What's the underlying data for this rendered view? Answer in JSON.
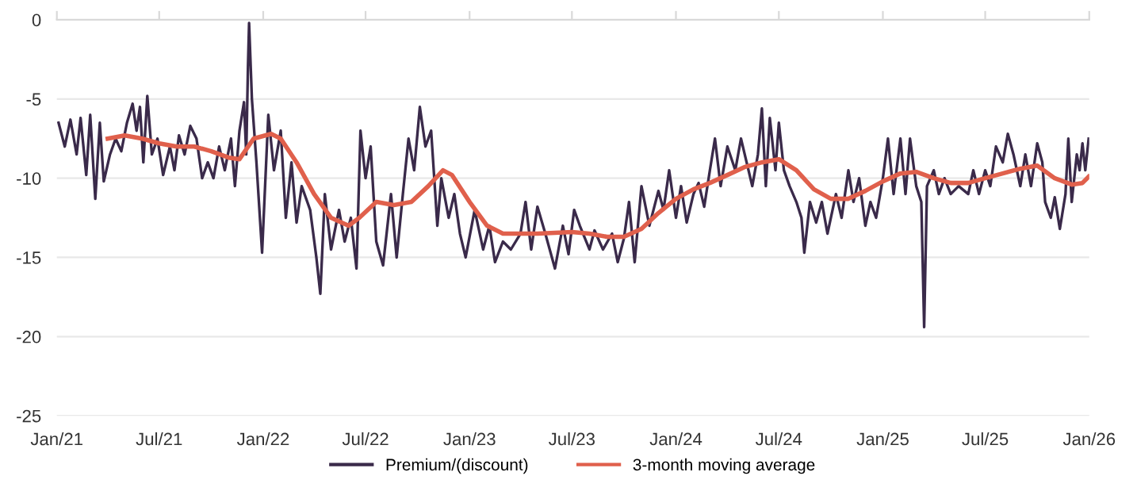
{
  "chart_data": {
    "type": "line",
    "xlim": [
      "2021-01-01",
      "2026-01-01"
    ],
    "xticks": [
      {
        "value": "2021-01-01",
        "label": "Jan/21"
      },
      {
        "value": "2021-07-01",
        "label": "Jul/21"
      },
      {
        "value": "2022-01-01",
        "label": "Jan/22"
      },
      {
        "value": "2022-07-01",
        "label": "Jul/22"
      },
      {
        "value": "2023-01-01",
        "label": "Jan/23"
      },
      {
        "value": "2023-07-01",
        "label": "Jul/23"
      },
      {
        "value": "2024-01-01",
        "label": "Jan/24"
      },
      {
        "value": "2024-07-01",
        "label": "Jul/24"
      },
      {
        "value": "2025-01-01",
        "label": "Jan/25"
      },
      {
        "value": "2025-07-01",
        "label": "Jul/25"
      },
      {
        "value": "2026-01-01",
        "label": "Jan/26"
      }
    ],
    "ylim": [
      -25,
      0
    ],
    "yticks": [
      -25,
      -20,
      -15,
      -10,
      -5,
      0
    ],
    "grid": "y",
    "legend": "bottom",
    "line_style": "solid",
    "marker": "none",
    "series": [
      {
        "name": "Premium/(discount)",
        "color": "#3a2a4a",
        "x": [
          "2021-01-04",
          "2021-01-15",
          "2021-01-25",
          "2021-02-05",
          "2021-02-12",
          "2021-02-22",
          "2021-03-01",
          "2021-03-10",
          "2021-03-18",
          "2021-03-25",
          "2021-04-05",
          "2021-04-15",
          "2021-04-25",
          "2021-05-05",
          "2021-05-15",
          "2021-05-22",
          "2021-05-28",
          "2021-06-03",
          "2021-06-10",
          "2021-06-18",
          "2021-06-28",
          "2021-07-08",
          "2021-07-20",
          "2021-07-28",
          "2021-08-05",
          "2021-08-15",
          "2021-08-25",
          "2021-09-05",
          "2021-09-15",
          "2021-09-25",
          "2021-10-05",
          "2021-10-15",
          "2021-10-25",
          "2021-11-05",
          "2021-11-12",
          "2021-11-20",
          "2021-11-28",
          "2021-12-02",
          "2021-12-05",
          "2021-12-07",
          "2021-12-12",
          "2021-12-20",
          "2021-12-30",
          "2022-01-10",
          "2022-01-20",
          "2022-02-01",
          "2022-02-10",
          "2022-02-20",
          "2022-03-01",
          "2022-03-10",
          "2022-03-25",
          "2022-04-05",
          "2022-04-12",
          "2022-04-20",
          "2022-05-01",
          "2022-05-15",
          "2022-05-25",
          "2022-06-05",
          "2022-06-15",
          "2022-06-22",
          "2022-07-01",
          "2022-07-10",
          "2022-07-20",
          "2022-08-01",
          "2022-08-15",
          "2022-08-25",
          "2022-09-05",
          "2022-09-15",
          "2022-09-25",
          "2022-10-05",
          "2022-10-15",
          "2022-10-25",
          "2022-11-05",
          "2022-11-12",
          "2022-11-25",
          "2022-12-05",
          "2022-12-15",
          "2022-12-25",
          "2023-01-10",
          "2023-01-25",
          "2023-02-05",
          "2023-02-15",
          "2023-03-01",
          "2023-03-15",
          "2023-04-01",
          "2023-04-10",
          "2023-04-20",
          "2023-05-01",
          "2023-05-15",
          "2023-06-01",
          "2023-06-15",
          "2023-06-25",
          "2023-07-05",
          "2023-07-15",
          "2023-08-01",
          "2023-08-10",
          "2023-08-25",
          "2023-09-10",
          "2023-09-20",
          "2023-10-01",
          "2023-10-10",
          "2023-10-20",
          "2023-11-01",
          "2023-11-15",
          "2023-12-01",
          "2023-12-10",
          "2023-12-20",
          "2024-01-01",
          "2024-01-10",
          "2024-01-20",
          "2024-02-01",
          "2024-02-10",
          "2024-02-20",
          "2024-03-01",
          "2024-03-10",
          "2024-03-20",
          "2024-04-01",
          "2024-04-15",
          "2024-04-25",
          "2024-05-05",
          "2024-05-15",
          "2024-05-25",
          "2024-06-01",
          "2024-06-08",
          "2024-06-15",
          "2024-06-25",
          "2024-07-01",
          "2024-07-10",
          "2024-07-20",
          "2024-08-01",
          "2024-08-10",
          "2024-08-15",
          "2024-08-25",
          "2024-09-05",
          "2024-09-15",
          "2024-09-25",
          "2024-10-10",
          "2024-10-20",
          "2024-11-01",
          "2024-11-10",
          "2024-11-20",
          "2024-12-01",
          "2024-12-10",
          "2024-12-20",
          "2025-01-01",
          "2025-01-10",
          "2025-01-20",
          "2025-02-01",
          "2025-02-10",
          "2025-02-18",
          "2025-03-01",
          "2025-03-10",
          "2025-03-15",
          "2025-03-20",
          "2025-04-01",
          "2025-04-10",
          "2025-04-20",
          "2025-05-01",
          "2025-05-15",
          "2025-06-01",
          "2025-06-10",
          "2025-06-20",
          "2025-07-01",
          "2025-07-10",
          "2025-07-20",
          "2025-08-01",
          "2025-08-10",
          "2025-08-20",
          "2025-09-01",
          "2025-09-10",
          "2025-09-20",
          "2025-10-01",
          "2025-10-10",
          "2025-10-15",
          "2025-10-25",
          "2025-11-01",
          "2025-11-10",
          "2025-11-20",
          "2025-11-25",
          "2025-12-01",
          "2025-12-10",
          "2025-12-15",
          "2025-12-20",
          "2025-12-25",
          "2025-12-31"
        ],
        "values": [
          -6.5,
          -8,
          -6.3,
          -8.5,
          -6.2,
          -9.8,
          -6,
          -11.3,
          -6.5,
          -10.2,
          -8.5,
          -7.5,
          -8.3,
          -6.5,
          -5.3,
          -7,
          -5.5,
          -9,
          -4.8,
          -8.5,
          -7.5,
          -9.8,
          -8,
          -9.5,
          -7.3,
          -8.5,
          -6.7,
          -7.5,
          -10,
          -9,
          -10,
          -8,
          -9.5,
          -7.5,
          -10.5,
          -7,
          -5.2,
          -8.5,
          -3,
          -0.2,
          -5,
          -9,
          -14.7,
          -6,
          -9.5,
          -7,
          -12.5,
          -9,
          -12.8,
          -10.5,
          -12,
          -15,
          -17.3,
          -11,
          -14.5,
          -12,
          -14,
          -12.5,
          -15.7,
          -7,
          -10,
          -8,
          -14,
          -15.5,
          -11,
          -15,
          -11,
          -7.5,
          -9.5,
          -5.5,
          -8,
          -7,
          -13,
          -10,
          -12.5,
          -11,
          -13.5,
          -15,
          -12,
          -14.5,
          -13,
          -15.3,
          -14,
          -14.5,
          -13.5,
          -11.5,
          -14.5,
          -11.8,
          -13.5,
          -15.7,
          -13,
          -14.8,
          -12,
          -13,
          -14.5,
          -13.3,
          -14.5,
          -13.5,
          -15.3,
          -13.8,
          -11.5,
          -15.3,
          -10.5,
          -13,
          -10.8,
          -12,
          -9.5,
          -12.5,
          -10.5,
          -12.8,
          -11,
          -10.3,
          -11.8,
          -9.5,
          -7.5,
          -10.5,
          -8,
          -9.5,
          -7.5,
          -9,
          -10.5,
          -8.5,
          -5.6,
          -10.5,
          -6.2,
          -9.5,
          -6.5,
          -9.5,
          -10.5,
          -11.5,
          -12.5,
          -14.7,
          -11.5,
          -12.8,
          -11.5,
          -13.5,
          -11,
          -12.5,
          -9.5,
          -11.5,
          -10,
          -13,
          -11.5,
          -12.5,
          -10,
          -7.5,
          -11,
          -7.5,
          -11,
          -7.5,
          -10.5,
          -11.5,
          -19.4,
          -10.5,
          -9.5,
          -11,
          -10,
          -11,
          -10.5,
          -11,
          -9.5,
          -11,
          -9.5,
          -10.5,
          -8,
          -9,
          -7.2,
          -8.5,
          -10.5,
          -8.5,
          -10.5,
          -7.8,
          -9,
          -11.5,
          -12.5,
          -11.2,
          -13.2,
          -11,
          -7.5,
          -11.5,
          -8.5,
          -9.5,
          -7.8,
          -9.5,
          -7.5
        ]
      },
      {
        "name": "3-month moving average",
        "color": "#e0604c",
        "x": [
          "2021-04-01",
          "2021-05-01",
          "2021-06-01",
          "2021-07-01",
          "2021-08-01",
          "2021-09-01",
          "2021-10-01",
          "2021-11-01",
          "2021-11-20",
          "2021-12-15",
          "2022-01-15",
          "2022-02-01",
          "2022-03-01",
          "2022-04-01",
          "2022-05-01",
          "2022-06-01",
          "2022-06-20",
          "2022-07-20",
          "2022-08-20",
          "2022-09-20",
          "2022-10-20",
          "2022-11-15",
          "2022-12-01",
          "2023-01-01",
          "2023-02-01",
          "2023-03-01",
          "2023-05-01",
          "2023-07-01",
          "2023-08-01",
          "2023-09-01",
          "2023-10-01",
          "2023-11-01",
          "2023-12-01",
          "2024-01-01",
          "2024-02-01",
          "2024-03-01",
          "2024-04-01",
          "2024-05-01",
          "2024-06-01",
          "2024-07-01",
          "2024-08-01",
          "2024-09-01",
          "2024-10-01",
          "2024-11-01",
          "2024-12-01",
          "2025-01-01",
          "2025-02-01",
          "2025-03-01",
          "2025-04-01",
          "2025-05-01",
          "2025-06-01",
          "2025-07-01",
          "2025-08-01",
          "2025-09-01",
          "2025-10-01",
          "2025-11-01",
          "2025-12-01",
          "2025-12-20",
          "2025-12-31"
        ],
        "values": [
          -7.5,
          -7.3,
          -7.5,
          -7.8,
          -8,
          -8,
          -8.3,
          -8.7,
          -8.8,
          -7.5,
          -7.2,
          -7.5,
          -9,
          -11,
          -12.5,
          -13,
          -12.5,
          -11.5,
          -11.7,
          -11.5,
          -10.5,
          -9.5,
          -9.8,
          -11.5,
          -13,
          -13.5,
          -13.5,
          -13.4,
          -13.5,
          -13.7,
          -13.7,
          -13.2,
          -12.2,
          -11.3,
          -10.7,
          -10.3,
          -9.8,
          -9.3,
          -9,
          -8.8,
          -9.5,
          -10.7,
          -11.3,
          -11.3,
          -10.8,
          -10.2,
          -9.7,
          -9.6,
          -10,
          -10.3,
          -10.3,
          -10,
          -9.7,
          -9.4,
          -9.2,
          -10,
          -10.4,
          -10.3,
          -9.9
        ]
      }
    ]
  }
}
